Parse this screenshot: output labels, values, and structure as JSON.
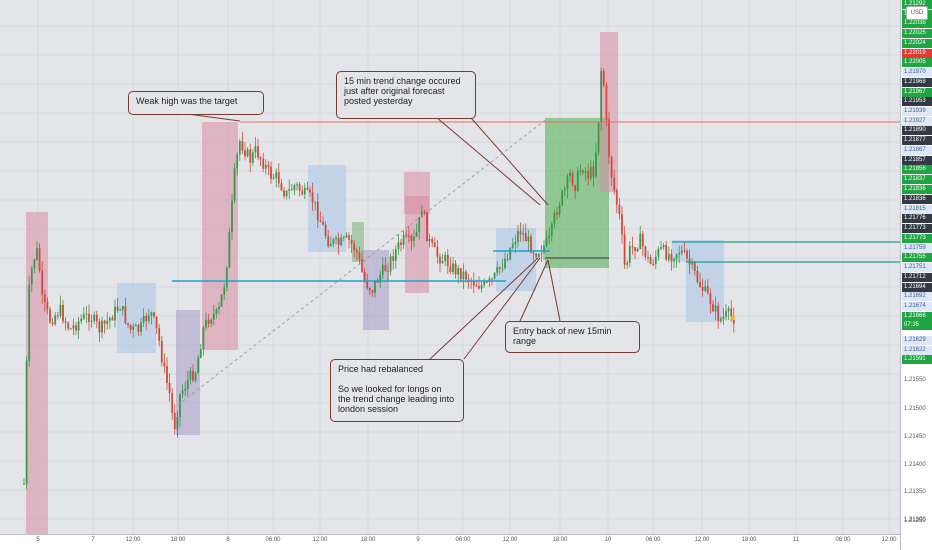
{
  "currency": "USD",
  "annotations": {
    "weak_high": "Weak high was the target",
    "trend_change": "15 min trend change occured\njust after original forecast\nposted yesterday",
    "rebalanced": "Price had rebalanced\n\nSo we looked for longs on\nthe trend change leading into\nlondon session",
    "entry": "Entry back of new 15min\nrange"
  },
  "price_labels": [
    {
      "text": "1.22054",
      "bg": "#1fa541",
      "fg": "#fff"
    },
    {
      "text": "1.22047",
      "bg": "#1fa541",
      "fg": "#fff"
    },
    {
      "text": "1.22038",
      "bg": "#1fa541",
      "fg": "#fff"
    },
    {
      "text": "1.22025",
      "bg": "#1fa541",
      "fg": "#fff"
    },
    {
      "text": "1.22024",
      "bg": "#1fa541",
      "fg": "#fff"
    },
    {
      "text": "1.22019",
      "bg": "#e53935",
      "fg": "#fff"
    },
    {
      "text": "1.22005",
      "bg": "#1fa541",
      "fg": "#fff"
    },
    {
      "text": "1.21970",
      "bg": "#dde7f5",
      "fg": "#3a5fa0"
    },
    {
      "text": "1.21968",
      "bg": "#333a44",
      "fg": "#fff"
    },
    {
      "text": "1.21967",
      "bg": "#1fa541",
      "fg": "#fff"
    },
    {
      "text": "1.21953",
      "bg": "#333a44",
      "fg": "#fff"
    },
    {
      "text": "1.21939",
      "bg": "#dde7f5",
      "fg": "#3a5fa0"
    },
    {
      "text": "1.21927",
      "bg": "#dde7f5",
      "fg": "#3a5fa0"
    },
    {
      "text": "1.21890",
      "bg": "#333a44",
      "fg": "#fff"
    },
    {
      "text": "1.21877",
      "bg": "#333a44",
      "fg": "#fff"
    },
    {
      "text": "1.21867",
      "bg": "#dde7f5",
      "fg": "#3a5fa0"
    },
    {
      "text": "1.21857",
      "bg": "#333a44",
      "fg": "#fff"
    },
    {
      "text": "1.21856",
      "bg": "#1fa541",
      "fg": "#fff"
    },
    {
      "text": "1.21837",
      "bg": "#1fa541",
      "fg": "#fff"
    },
    {
      "text": "1.21836",
      "bg": "#1fa541",
      "fg": "#fff"
    },
    {
      "text": "1.21836",
      "bg": "#333a44",
      "fg": "#fff"
    },
    {
      "text": "1.21815",
      "bg": "#dde7f5",
      "fg": "#3a5fa0"
    },
    {
      "text": "1.21776",
      "bg": "#333a44",
      "fg": "#fff"
    },
    {
      "text": "1.21773",
      "bg": "#333a44",
      "fg": "#fff"
    },
    {
      "text": "1.21773",
      "bg": "#1fa541",
      "fg": "#fff"
    },
    {
      "text": "1.21759",
      "bg": "#dde7f5",
      "fg": "#3a5fa0"
    },
    {
      "text": "1.21755",
      "bg": "#1fa541",
      "fg": "#fff"
    },
    {
      "text": "1.21751",
      "bg": "#dde7f5",
      "fg": "#3a5fa0"
    },
    {
      "text": "1.21712",
      "bg": "#333a44",
      "fg": "#fff"
    },
    {
      "text": "1.21694",
      "bg": "#333a44",
      "fg": "#fff"
    },
    {
      "text": "1.21692",
      "bg": "#dde7f5",
      "fg": "#3a5fa0"
    },
    {
      "text": "1.21674",
      "bg": "#dde7f5",
      "fg": "#3a5fa0"
    },
    {
      "text": "1.21666",
      "bg": "#1fa541",
      "fg": "#fff"
    },
    {
      "text": "07:35",
      "bg": "#1fa541",
      "fg": "#fff"
    },
    {
      "text": "1.21629",
      "bg": "#dde7f5",
      "fg": "#3a5fa0"
    },
    {
      "text": "1.21622",
      "bg": "#dde7f5",
      "fg": "#3a5fa0"
    },
    {
      "text": "1.21591",
      "bg": "#1fa541",
      "fg": "#fff"
    },
    {
      "text": "1.21550",
      "bg": "",
      "fg": ""
    },
    {
      "text": "1.21500",
      "bg": "",
      "fg": ""
    },
    {
      "text": "1.21450",
      "bg": "",
      "fg": ""
    },
    {
      "text": "1.21400",
      "bg": "",
      "fg": ""
    },
    {
      "text": "1.21350",
      "bg": "",
      "fg": ""
    },
    {
      "text": "1.21300",
      "bg": "",
      "fg": ""
    },
    {
      "text": "1.21250",
      "bg": "",
      "fg": ""
    },
    {
      "text": "1.21292",
      "bg": "#1fa541",
      "fg": "#fff"
    }
  ],
  "time_labels": [
    "5",
    "7",
    "12:00",
    "18:00",
    "8",
    "06:00",
    "12:00",
    "18:00",
    "9",
    "06:00",
    "12:00",
    "18:00",
    "10",
    "06:00",
    "12:00",
    "18:00",
    "11",
    "06:00",
    "12:00"
  ],
  "colors": {
    "bull": "#3a9a4a",
    "bear": "#d04b3b",
    "highlight_red": "#d98da2",
    "highlight_blue": "#a8c6e8",
    "highlight_purple": "#a59ac9",
    "highlight_green": "#4caf50",
    "target_line": "#e0705e",
    "level_line": "#1ba3c9"
  }
}
